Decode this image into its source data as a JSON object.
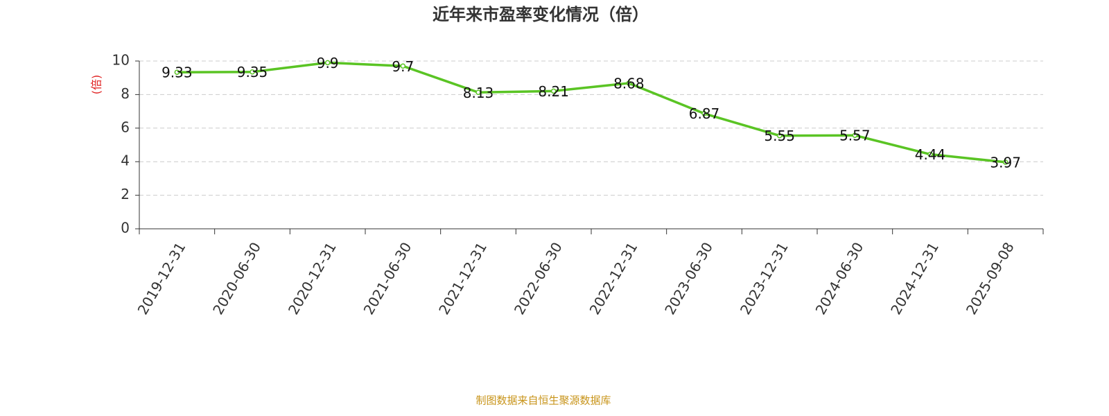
{
  "chart_data": {
    "type": "line",
    "title": "近年来市盈率变化情况（倍）",
    "y_label": "(倍)",
    "source": "制图数据来自恒生聚源数据库",
    "categories": [
      "2019-12-31",
      "2020-06-30",
      "2020-12-31",
      "2021-06-30",
      "2021-12-31",
      "2022-06-30",
      "2022-12-31",
      "2023-06-30",
      "2023-12-31",
      "2024-06-30",
      "2024-12-31",
      "2025-09-08"
    ],
    "values": [
      9.33,
      9.35,
      9.9,
      9.7,
      8.13,
      8.21,
      8.68,
      6.87,
      5.55,
      5.57,
      4.44,
      3.97
    ],
    "color": "#5ac424",
    "ylim": [
      0,
      10
    ],
    "yticks": [
      0,
      2,
      4,
      6,
      8,
      10
    ],
    "grid": true
  }
}
